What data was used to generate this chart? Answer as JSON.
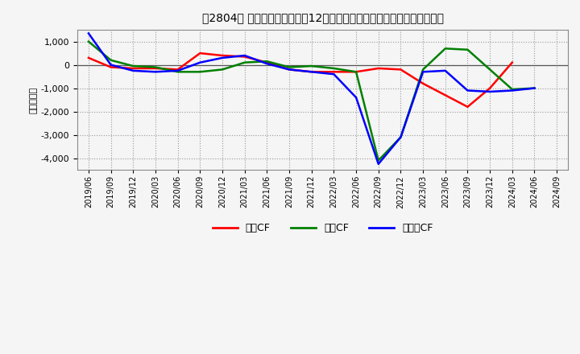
{
  "title": "　2804、 キャッシュフローの12か月移動合計の対前年同期増減額の推移",
  "title2": "　2804、  キャッシュフローの12か月移動合計の対前年同期増減額の推移",
  "ylabel": "（百万円）",
  "background_color": "#f5f5f5",
  "plot_bg_color": "#f5f5f5",
  "grid_color": "#999999",
  "xlabels": [
    "2019/06",
    "2019/09",
    "2019/12",
    "2020/03",
    "2020/06",
    "2020/09",
    "2020/12",
    "2021/03",
    "2021/06",
    "2021/09",
    "2021/12",
    "2022/03",
    "2022/06",
    "2022/09",
    "2022/12",
    "2023/03",
    "2023/06",
    "2023/09",
    "2023/12",
    "2024/03",
    "2024/06",
    "2024/09"
  ],
  "eigyo_cf": [
    300,
    -100,
    -150,
    -150,
    -200,
    500,
    400,
    350,
    100,
    -200,
    -300,
    -300,
    -300,
    -150,
    -200,
    -800,
    -1300,
    -1800,
    -1000,
    100,
    null,
    null
  ],
  "toshi_cf": [
    1000,
    200,
    -50,
    -100,
    -300,
    -300,
    -200,
    100,
    150,
    -100,
    -50,
    -150,
    -300,
    -4100,
    -3100,
    -200,
    700,
    650,
    -200,
    -1050,
    -1000,
    null
  ],
  "free_cf": [
    1350,
    0,
    -250,
    -300,
    -250,
    100,
    300,
    400,
    50,
    -200,
    -300,
    -400,
    -1400,
    -4250,
    -3100,
    -300,
    -250,
    -1100,
    -1150,
    -1100,
    -1000,
    null
  ],
  "eigyo_color": "#ff0000",
  "toshi_color": "#008000",
  "free_color": "#0000ff",
  "ylim": [
    -4500,
    1500
  ],
  "yticks": [
    -4000,
    -3000,
    -2000,
    -1000,
    0,
    1000
  ],
  "legend_labels": [
    "営業CF",
    "投資CF",
    "フリーCF"
  ]
}
